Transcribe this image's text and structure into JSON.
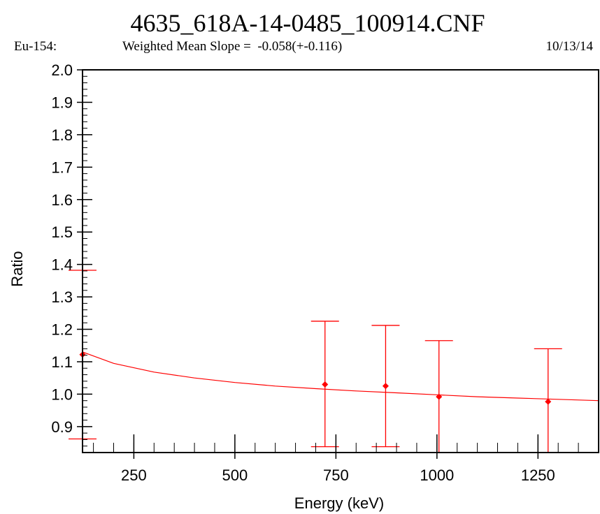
{
  "header": {
    "filename": "4635_618A-14-0485_100914.CNF",
    "nuclide": "Eu-154:",
    "slope_text": "Weighted Mean Slope =  -0.058(+-0.116)",
    "date": "10/13/14"
  },
  "chart_data": {
    "type": "scatter",
    "title": "4635_618A-14-0485_100914.CNF",
    "xlabel": "Energy (keV)",
    "ylabel": "Ratio",
    "xlim": [
      123,
      1400
    ],
    "ylim": [
      0.82,
      2.0
    ],
    "x_ticks": [
      250,
      500,
      750,
      1000,
      1250
    ],
    "x_minor_step": 50,
    "y_ticks": [
      0.9,
      1.0,
      1.1,
      1.2,
      1.3,
      1.4,
      1.5,
      1.6,
      1.7,
      1.8,
      1.9,
      2.0
    ],
    "y_minor_step": 0.02,
    "grid": false,
    "color": "#ff0000",
    "points": [
      {
        "x": 123,
        "y": 1.122,
        "err_low": 0.862,
        "err_high": 1.382
      },
      {
        "x": 723,
        "y": 1.03,
        "err_low": 0.838,
        "err_high": 1.225
      },
      {
        "x": 873,
        "y": 1.025,
        "err_low": 0.838,
        "err_high": 1.212
      },
      {
        "x": 1005,
        "y": 0.992,
        "err_low": 0.82,
        "err_high": 1.165
      },
      {
        "x": 1275,
        "y": 0.977,
        "err_low": 0.82,
        "err_high": 1.14
      }
    ],
    "fit_curve": [
      {
        "x": 123,
        "y": 1.13
      },
      {
        "x": 200,
        "y": 1.095
      },
      {
        "x": 300,
        "y": 1.068
      },
      {
        "x": 400,
        "y": 1.05
      },
      {
        "x": 500,
        "y": 1.036
      },
      {
        "x": 600,
        "y": 1.025
      },
      {
        "x": 700,
        "y": 1.017
      },
      {
        "x": 800,
        "y": 1.01
      },
      {
        "x": 900,
        "y": 1.004
      },
      {
        "x": 1000,
        "y": 0.998
      },
      {
        "x": 1100,
        "y": 0.992
      },
      {
        "x": 1200,
        "y": 0.988
      },
      {
        "x": 1300,
        "y": 0.984
      },
      {
        "x": 1400,
        "y": 0.98
      }
    ]
  }
}
